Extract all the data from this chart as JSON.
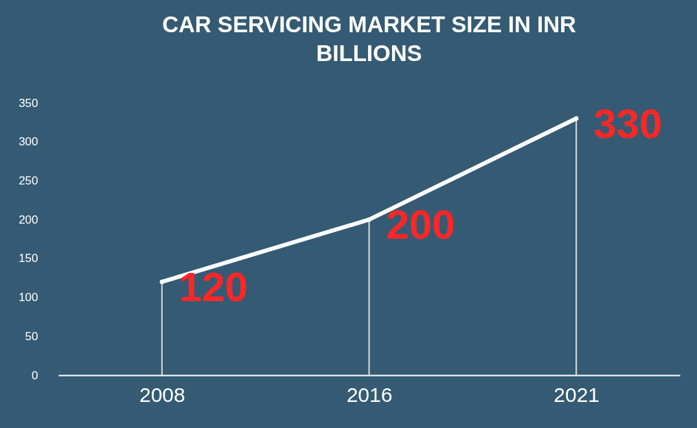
{
  "chart_data": {
    "type": "line",
    "title": "CAR SERVICING MARKET SIZE IN INR BILLIONS",
    "categories": [
      "2008",
      "2016",
      "2021"
    ],
    "series": [
      {
        "color": "#ffffff",
        "values": [
          120,
          200,
          330
        ]
      }
    ],
    "ylim": [
      0,
      350
    ],
    "yticks": [
      0,
      50,
      100,
      150,
      200,
      250,
      300,
      350
    ],
    "grid": "x",
    "legend": false,
    "marker": "circle",
    "line_style": "solid",
    "data_labels": true
  }
}
